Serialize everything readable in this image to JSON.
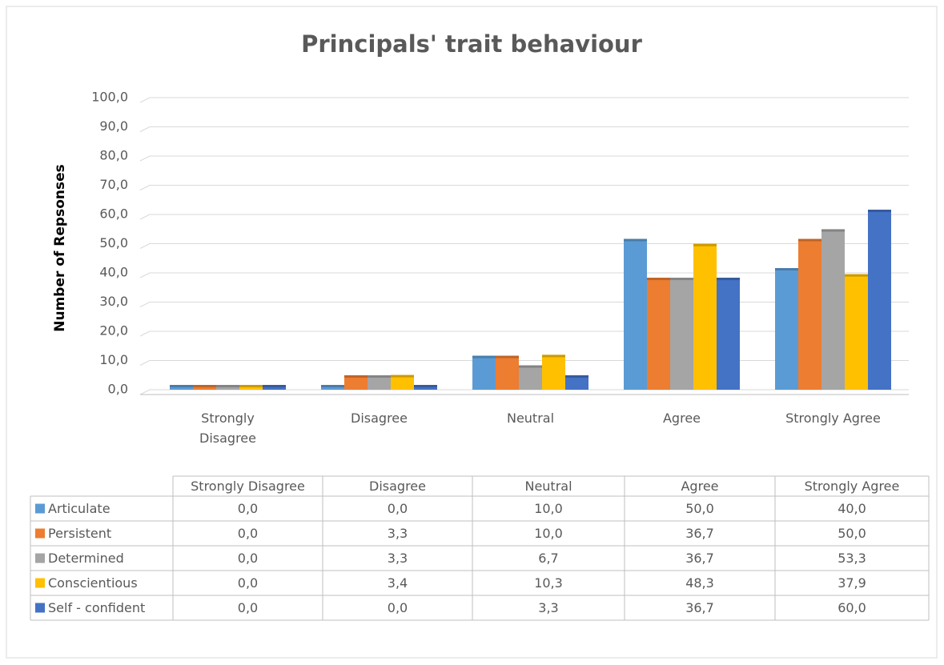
{
  "chart_data": {
    "type": "bar",
    "title": "Principals' trait behaviour",
    "y_label": "Number of Repsonses",
    "categories": [
      "Strongly Disagree",
      "Disagree",
      "Neutral",
      "Agree",
      "Strongly Agree"
    ],
    "series": [
      {
        "name": "Articulate",
        "color": "#5b9bd5",
        "values": [
          0.0,
          0.0,
          10.0,
          50.0,
          40.0
        ],
        "value_labels": [
          "0,0",
          "0,0",
          "10,0",
          "50,0",
          "40,0"
        ]
      },
      {
        "name": "Persistent",
        "color": "#ed7d31",
        "values": [
          0.0,
          3.3,
          10.0,
          36.7,
          50.0
        ],
        "value_labels": [
          "0,0",
          "3,3",
          "10,0",
          "36,7",
          "50,0"
        ]
      },
      {
        "name": "Determined",
        "color": "#a5a5a5",
        "values": [
          0.0,
          3.3,
          6.7,
          36.7,
          53.3
        ],
        "value_labels": [
          "0,0",
          "3,3",
          "6,7",
          "36,7",
          "53,3"
        ]
      },
      {
        "name": "Conscientious",
        "color": "#ffc000",
        "values": [
          0.0,
          3.4,
          10.3,
          48.3,
          37.9
        ],
        "value_labels": [
          "0,0",
          "3,4",
          "10,3",
          "48,3",
          "37,9"
        ]
      },
      {
        "name": "Self - confident",
        "color": "#4472c4",
        "values": [
          0.0,
          0.0,
          3.3,
          36.7,
          60.0
        ],
        "value_labels": [
          "0,0",
          "0,0",
          "3,3",
          "36,7",
          "60,0"
        ]
      }
    ],
    "ylim": [
      0,
      100
    ],
    "yticks": [
      {
        "value": 0,
        "label": "0,0"
      },
      {
        "value": 10,
        "label": "10,0"
      },
      {
        "value": 20,
        "label": "20,0"
      },
      {
        "value": 30,
        "label": "30,0"
      },
      {
        "value": 40,
        "label": "40,0"
      },
      {
        "value": 50,
        "label": "50,0"
      },
      {
        "value": 60,
        "label": "60,0"
      },
      {
        "value": 70,
        "label": "70,0"
      },
      {
        "value": 80,
        "label": "80,0"
      },
      {
        "value": 90,
        "label": "90,0"
      },
      {
        "value": 100,
        "label": "100,0"
      }
    ],
    "grid": true,
    "data_table": true
  }
}
